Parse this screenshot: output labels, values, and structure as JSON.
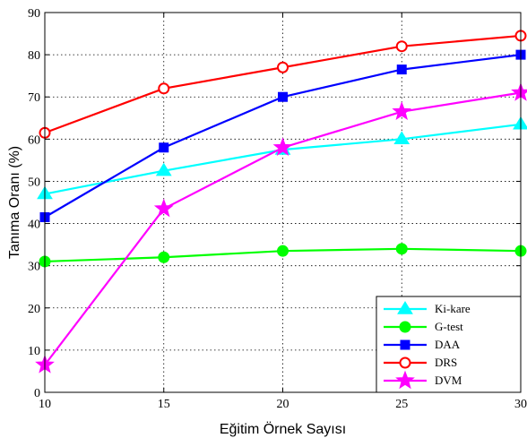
{
  "chart_data": {
    "type": "line",
    "xlabel": "Eğitim Örnek Sayısı",
    "ylabel": "Tanıma Oranı (%)",
    "x": [
      10,
      15,
      20,
      25,
      30
    ],
    "xticks": [
      "10",
      "15",
      "20",
      "25",
      "30"
    ],
    "yticks": [
      "0",
      "10",
      "20",
      "30",
      "40",
      "50",
      "60",
      "70",
      "80",
      "90"
    ],
    "xlim": [
      10,
      30
    ],
    "ylim": [
      0,
      90
    ],
    "grid": true,
    "legend_position": "bottom-right",
    "series": [
      {
        "name": "Ki-kare",
        "color": "#00ffff",
        "marker": "triangle",
        "values": [
          47,
          52.5,
          57.5,
          60,
          63.5
        ]
      },
      {
        "name": "G-test",
        "color": "#00ff00",
        "marker": "circle-filled",
        "values": [
          31,
          32,
          33.5,
          34,
          33.5
        ]
      },
      {
        "name": "DAA",
        "color": "#0000ff",
        "marker": "square",
        "values": [
          41.5,
          58,
          70,
          76.5,
          80
        ]
      },
      {
        "name": "DRS",
        "color": "#ff0000",
        "marker": "circle-open",
        "values": [
          61.5,
          72,
          77,
          82,
          84.5
        ]
      },
      {
        "name": "DVM",
        "color": "#ff00ff",
        "marker": "star",
        "values": [
          6.5,
          43.5,
          58,
          66.5,
          71
        ]
      }
    ]
  }
}
